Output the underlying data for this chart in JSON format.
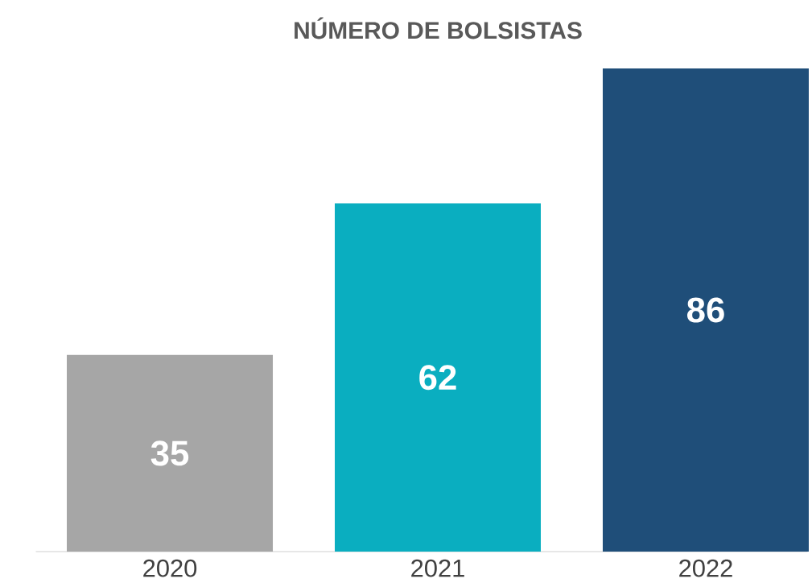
{
  "chart_data": {
    "type": "bar",
    "title": "NÚMERO DE BOLSISTAS",
    "categories": [
      "2020",
      "2021",
      "2022"
    ],
    "values": [
      35,
      62,
      86
    ],
    "colors": [
      "#a6a6a6",
      "#0aaec0",
      "#1f4e79"
    ],
    "data_labels": true
  }
}
